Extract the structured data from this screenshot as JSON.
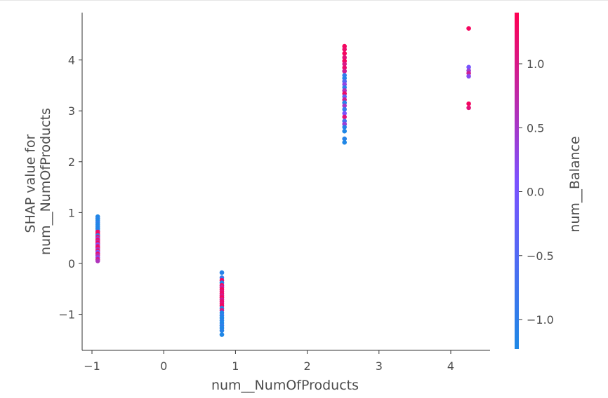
{
  "chart_data": {
    "type": "scatter",
    "title": "",
    "xlabel": "num__NumOfProducts",
    "ylabel": "SHAP value for\nnum__NumOfProducts",
    "xlim": [
      -1.2,
      4.5
    ],
    "ylim": [
      -1.7,
      4.9
    ],
    "xticks": [
      -1,
      0,
      1,
      2,
      3,
      4
    ],
    "xtick_labels": [
      "−1",
      "0",
      "1",
      "2",
      "3",
      "4"
    ],
    "yticks": [
      -1,
      0,
      1,
      2,
      3,
      4
    ],
    "ytick_labels": [
      "−1",
      "0",
      "1",
      "2",
      "3",
      "4"
    ],
    "grid": false,
    "colorbar": {
      "label": "num__Balance",
      "range": [
        -1.23,
        1.4
      ],
      "ticks": [
        -1.0,
        -0.5,
        0.0,
        0.5,
        1.0
      ],
      "tick_labels": [
        "−1.0",
        "−0.5",
        "0.0",
        "0.5",
        "1.0"
      ],
      "colors": [
        "#1e88e5",
        "#7c52ff",
        "#ff0052"
      ]
    },
    "points": [
      {
        "x": -0.92,
        "y": 0.92,
        "c": -1.2
      },
      {
        "x": -0.92,
        "y": 0.88,
        "c": -1.1
      },
      {
        "x": -0.92,
        "y": 0.84,
        "c": -1.2
      },
      {
        "x": -0.92,
        "y": 0.8,
        "c": -1.0
      },
      {
        "x": -0.92,
        "y": 0.76,
        "c": -1.2
      },
      {
        "x": -0.92,
        "y": 0.72,
        "c": -1.1
      },
      {
        "x": -0.92,
        "y": 0.68,
        "c": -1.2
      },
      {
        "x": -0.92,
        "y": 0.64,
        "c": -1.0
      },
      {
        "x": -0.92,
        "y": 0.62,
        "c": 1.2
      },
      {
        "x": -0.92,
        "y": 0.58,
        "c": 1.3
      },
      {
        "x": -0.92,
        "y": 0.55,
        "c": -1.1
      },
      {
        "x": -0.92,
        "y": 0.52,
        "c": 1.1
      },
      {
        "x": -0.92,
        "y": 0.49,
        "c": 0.4
      },
      {
        "x": -0.92,
        "y": 0.46,
        "c": 1.2
      },
      {
        "x": -0.92,
        "y": 0.43,
        "c": 0.8
      },
      {
        "x": -0.92,
        "y": 0.4,
        "c": 1.3
      },
      {
        "x": -0.92,
        "y": 0.37,
        "c": 0.2
      },
      {
        "x": -0.92,
        "y": 0.34,
        "c": 1.0
      },
      {
        "x": -0.92,
        "y": 0.31,
        "c": 1.3
      },
      {
        "x": -0.92,
        "y": 0.28,
        "c": 0.5
      },
      {
        "x": -0.92,
        "y": 0.25,
        "c": 1.1
      },
      {
        "x": -0.92,
        "y": 0.22,
        "c": 0.0
      },
      {
        "x": -0.92,
        "y": 0.19,
        "c": 1.2
      },
      {
        "x": -0.92,
        "y": 0.16,
        "c": 0.7
      },
      {
        "x": -0.92,
        "y": 0.12,
        "c": 0.3
      },
      {
        "x": -0.92,
        "y": 0.08,
        "c": 1.0
      },
      {
        "x": -0.92,
        "y": 0.05,
        "c": 0.6
      },
      {
        "x": 0.81,
        "y": -0.18,
        "c": -1.1
      },
      {
        "x": 0.81,
        "y": -0.28,
        "c": -0.9
      },
      {
        "x": 0.81,
        "y": -0.33,
        "c": 1.3
      },
      {
        "x": 0.81,
        "y": -0.38,
        "c": -1.2
      },
      {
        "x": 0.81,
        "y": -0.43,
        "c": 1.2
      },
      {
        "x": 0.81,
        "y": -0.47,
        "c": 0.8
      },
      {
        "x": 0.81,
        "y": -0.51,
        "c": 1.3
      },
      {
        "x": 0.81,
        "y": -0.55,
        "c": 1.1
      },
      {
        "x": 0.81,
        "y": -0.59,
        "c": 1.2
      },
      {
        "x": 0.81,
        "y": -0.63,
        "c": 1.0
      },
      {
        "x": 0.81,
        "y": -0.67,
        "c": 1.3
      },
      {
        "x": 0.81,
        "y": -0.71,
        "c": 0.9
      },
      {
        "x": 0.81,
        "y": -0.75,
        "c": 1.2
      },
      {
        "x": 0.81,
        "y": -0.79,
        "c": 1.1
      },
      {
        "x": 0.81,
        "y": -0.83,
        "c": 1.3
      },
      {
        "x": 0.81,
        "y": -0.88,
        "c": -1.1
      },
      {
        "x": 0.81,
        "y": -0.92,
        "c": 1.0
      },
      {
        "x": 0.81,
        "y": -0.97,
        "c": -1.2
      },
      {
        "x": 0.81,
        "y": -1.02,
        "c": -1.0
      },
      {
        "x": 0.81,
        "y": -1.07,
        "c": -1.2
      },
      {
        "x": 0.81,
        "y": -1.12,
        "c": -1.1
      },
      {
        "x": 0.81,
        "y": -1.17,
        "c": -1.2
      },
      {
        "x": 0.81,
        "y": -1.22,
        "c": -1.0
      },
      {
        "x": 0.81,
        "y": -1.27,
        "c": -1.2
      },
      {
        "x": 0.81,
        "y": -1.32,
        "c": -1.1
      },
      {
        "x": 0.81,
        "y": -1.4,
        "c": -1.2
      },
      {
        "x": 2.52,
        "y": 4.27,
        "c": 1.3
      },
      {
        "x": 2.52,
        "y": 4.21,
        "c": 1.2
      },
      {
        "x": 2.52,
        "y": 4.13,
        "c": 1.3
      },
      {
        "x": 2.52,
        "y": 4.05,
        "c": 1.1
      },
      {
        "x": 2.52,
        "y": 3.98,
        "c": 1.3
      },
      {
        "x": 2.52,
        "y": 3.92,
        "c": 1.0
      },
      {
        "x": 2.52,
        "y": 3.85,
        "c": 1.2
      },
      {
        "x": 2.52,
        "y": 3.78,
        "c": 0.9
      },
      {
        "x": 2.52,
        "y": 3.7,
        "c": -0.9
      },
      {
        "x": 2.52,
        "y": 3.64,
        "c": -1.1
      },
      {
        "x": 2.52,
        "y": 3.58,
        "c": -0.5
      },
      {
        "x": 2.52,
        "y": 3.52,
        "c": 0.3
      },
      {
        "x": 2.52,
        "y": 3.46,
        "c": -1.0
      },
      {
        "x": 2.52,
        "y": 3.4,
        "c": 0.6
      },
      {
        "x": 2.52,
        "y": 3.34,
        "c": 1.2
      },
      {
        "x": 2.52,
        "y": 3.28,
        "c": -0.3
      },
      {
        "x": 2.52,
        "y": 3.22,
        "c": 0.9
      },
      {
        "x": 2.52,
        "y": 3.16,
        "c": -1.1
      },
      {
        "x": 2.52,
        "y": 3.1,
        "c": 0.5
      },
      {
        "x": 2.52,
        "y": 3.03,
        "c": -0.9
      },
      {
        "x": 2.52,
        "y": 2.95,
        "c": 0.1
      },
      {
        "x": 2.52,
        "y": 2.88,
        "c": 1.1
      },
      {
        "x": 2.52,
        "y": 2.8,
        "c": -0.7
      },
      {
        "x": 2.52,
        "y": 2.74,
        "c": 0.4
      },
      {
        "x": 2.52,
        "y": 2.68,
        "c": -1.1
      },
      {
        "x": 2.52,
        "y": 2.6,
        "c": -1.2
      },
      {
        "x": 2.52,
        "y": 2.45,
        "c": -1.1
      },
      {
        "x": 2.52,
        "y": 2.38,
        "c": -1.2
      },
      {
        "x": 4.25,
        "y": 4.62,
        "c": 1.3
      },
      {
        "x": 4.25,
        "y": 3.86,
        "c": 0.0
      },
      {
        "x": 4.25,
        "y": 3.79,
        "c": 0.4
      },
      {
        "x": 4.25,
        "y": 3.74,
        "c": 0.9
      },
      {
        "x": 4.25,
        "y": 3.68,
        "c": 0.2
      },
      {
        "x": 4.25,
        "y": 3.14,
        "c": 1.3
      },
      {
        "x": 4.25,
        "y": 3.06,
        "c": 1.1
      }
    ]
  }
}
